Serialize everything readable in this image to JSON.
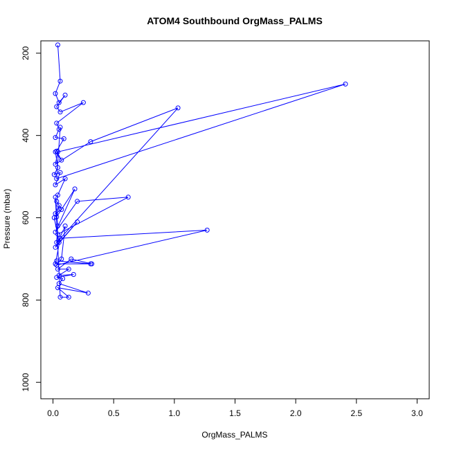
{
  "chart_data": {
    "type": "line",
    "title": "ATOM4 Southbound OrgMass_PALMS",
    "xlabel": "OrgMass_PALMS",
    "ylabel": "Pressure (mbar)",
    "xlim": [
      -0.1,
      3.1
    ],
    "ylim": [
      1040,
      170
    ],
    "y_reversed": true,
    "x_ticks": [
      0.0,
      0.5,
      1.0,
      1.5,
      2.0,
      2.5,
      3.0
    ],
    "x_tick_labels": [
      "0.0",
      "0.5",
      "1.0",
      "1.5",
      "2.0",
      "2.5",
      "3.0"
    ],
    "y_ticks": [
      200,
      400,
      600,
      800,
      1000
    ],
    "y_tick_labels": [
      "200",
      "400",
      "600",
      "800",
      "1000"
    ],
    "grid": false,
    "markers": "open-circle",
    "series": [
      {
        "color": "#0000ff",
        "x": [
          0.04,
          0.06,
          0.02,
          0.05,
          0.1,
          0.03,
          0.06,
          0.25,
          0.03,
          0.05,
          0.02,
          0.09,
          0.03,
          0.07,
          0.02,
          0.04,
          0.01,
          0.06,
          0.02,
          0.1,
          0.04,
          0.03,
          0.07,
          0.02,
          0.05,
          0.03,
          0.18,
          0.02,
          0.2,
          0.62,
          0.04,
          0.01,
          0.05,
          0.2,
          0.02,
          0.1,
          0.07,
          0.03,
          1.27,
          0.06,
          0.02,
          0.31,
          0.03,
          0.32,
          0.15,
          0.04,
          0.13,
          0.05,
          0.17,
          0.03,
          0.08,
          0.05,
          0.29,
          0.04,
          0.13,
          0.06,
          0.02,
          0.04,
          0.03,
          1.03,
          0.31,
          0.02,
          0.04,
          2.41,
          0.03,
          0.06
        ],
        "y": [
          180,
          268,
          298,
          320,
          302,
          330,
          343,
          320,
          370,
          385,
          405,
          408,
          438,
          460,
          440,
          478,
          495,
          490,
          520,
          505,
          545,
          560,
          580,
          590,
          570,
          598,
          530,
          635,
          560,
          550,
          640,
          600,
          660,
          610,
          672,
          620,
          700,
          715,
          630,
          650,
          712,
          712,
          705,
          712,
          700,
          725,
          725,
          740,
          738,
          745,
          748,
          760,
          783,
          770,
          793,
          793,
          550,
          620,
          660,
          333,
          415,
          470,
          440,
          275,
          505,
          380
        ]
      }
    ]
  }
}
